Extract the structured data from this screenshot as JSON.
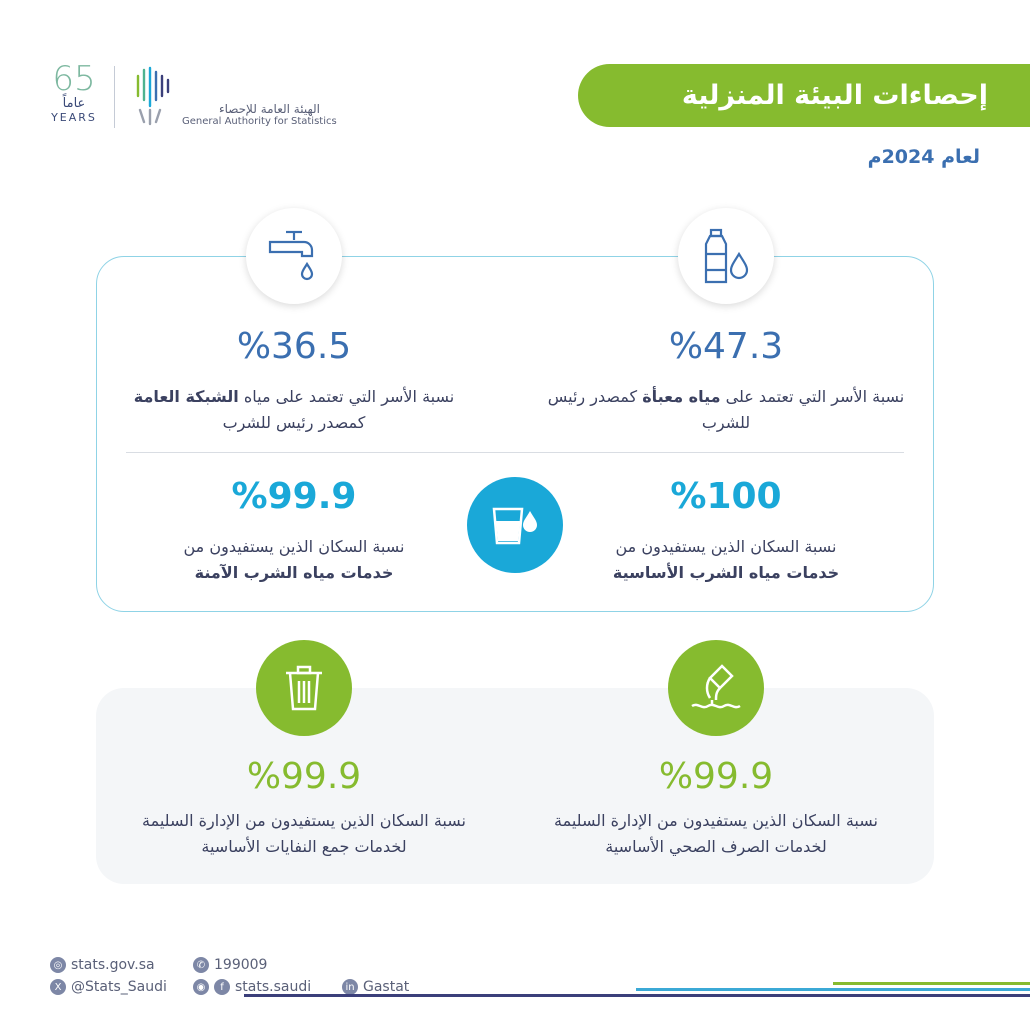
{
  "header": {
    "logo_65": "65",
    "logo_years_ar": "عاماً",
    "logo_years_en": "YEARS",
    "authority_ar": "الهيئة العامة للإحصاء",
    "authority_en": "General Authority for Statistics",
    "title": "إحصاءات البيئة المنزلية",
    "subtitle": "لعام 2024م"
  },
  "stats": [
    {
      "icon": "water-bottle-icon",
      "value": "%47.3",
      "desc_pre": "نسبة الأسر التي تعتمد على ",
      "desc_bold": "مياه معبأة",
      "desc_post": " كمصدر رئيس للشرب"
    },
    {
      "icon": "water-tap-icon",
      "value": "%36.5",
      "desc_pre": "نسبة الأسر التي تعتمد على مياه ",
      "desc_bold": "الشبكة العامة",
      "desc_post": " كمصدر رئيس للشرب"
    },
    {
      "icon": "water-glass-icon",
      "value": "%100",
      "desc_pre": "نسبة السكان الذين يستفيدون من ",
      "desc_bold": "خدمات مياه الشرب الأساسية",
      "desc_post": ""
    },
    {
      "value": "%99.9",
      "desc_pre": "نسبة السكان الذين يستفيدون من ",
      "desc_bold": "خدمات مياه الشرب الآمنة",
      "desc_post": ""
    },
    {
      "icon": "sewage-pipe-icon",
      "value": "%99.9",
      "desc": "نسبة السكان الذين يستفيدون من الإدارة السليمة لخدمات الصرف الصحي الأساسية"
    },
    {
      "icon": "trash-bin-icon",
      "value": "%99.9",
      "desc": "نسبة السكان الذين يستفيدون من الإدارة السليمة لخدمات جمع النفايات الأساسية"
    }
  ],
  "footer": {
    "website": "stats.gov.sa",
    "phone": "199009",
    "x": "@Stats_Saudi",
    "social": "stats.saudi",
    "linkedin": "Gastat"
  },
  "colors": {
    "green": "#86bb2f",
    "blue": "#3b6fb0",
    "cyan": "#1aa8d8",
    "navy": "#3b3f7a"
  }
}
